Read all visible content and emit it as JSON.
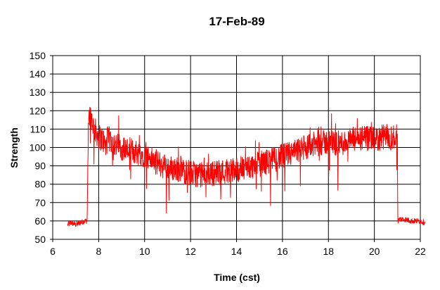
{
  "chart_data": {
    "type": "line",
    "title": "17-Feb-89",
    "xlabel": "Time (cst)",
    "ylabel": "Strength",
    "xlim": [
      6,
      22
    ],
    "ylim": [
      50,
      150
    ],
    "xticks": [
      6,
      8,
      10,
      12,
      14,
      16,
      18,
      20,
      22
    ],
    "yticks": [
      50,
      60,
      70,
      80,
      90,
      100,
      110,
      120,
      130,
      140,
      150
    ],
    "grid": true,
    "legend": "none",
    "series": [
      {
        "color": "#ff0000",
        "x": [
          6.65,
          6.8,
          7.0,
          7.2,
          7.4,
          7.5,
          7.55,
          7.6,
          7.7,
          7.8,
          8.0,
          8.2,
          8.3,
          8.4,
          8.6,
          8.8,
          9.0,
          9.5,
          10.0,
          10.5,
          11.0,
          11.5,
          12.0,
          12.5,
          13.0,
          13.5,
          14.0,
          14.5,
          15.0,
          15.5,
          16.0,
          16.5,
          17.0,
          17.5,
          18.0,
          18.5,
          19.0,
          19.5,
          20.0,
          20.5,
          20.8,
          21.0,
          21.02,
          21.1,
          21.3,
          21.6,
          22.0,
          22.2
        ],
        "y": [
          58,
          59,
          58,
          59,
          60,
          60,
          115,
          118,
          116,
          110,
          106,
          104,
          100,
          105,
          103,
          101,
          100,
          98,
          96,
          92,
          89,
          88,
          86,
          85,
          86,
          87,
          88,
          89,
          91,
          93,
          95,
          97,
          100,
          102,
          103,
          102,
          104,
          105,
          104,
          106,
          105,
          108,
          60,
          61,
          61,
          60,
          60,
          59
        ]
      }
    ]
  }
}
